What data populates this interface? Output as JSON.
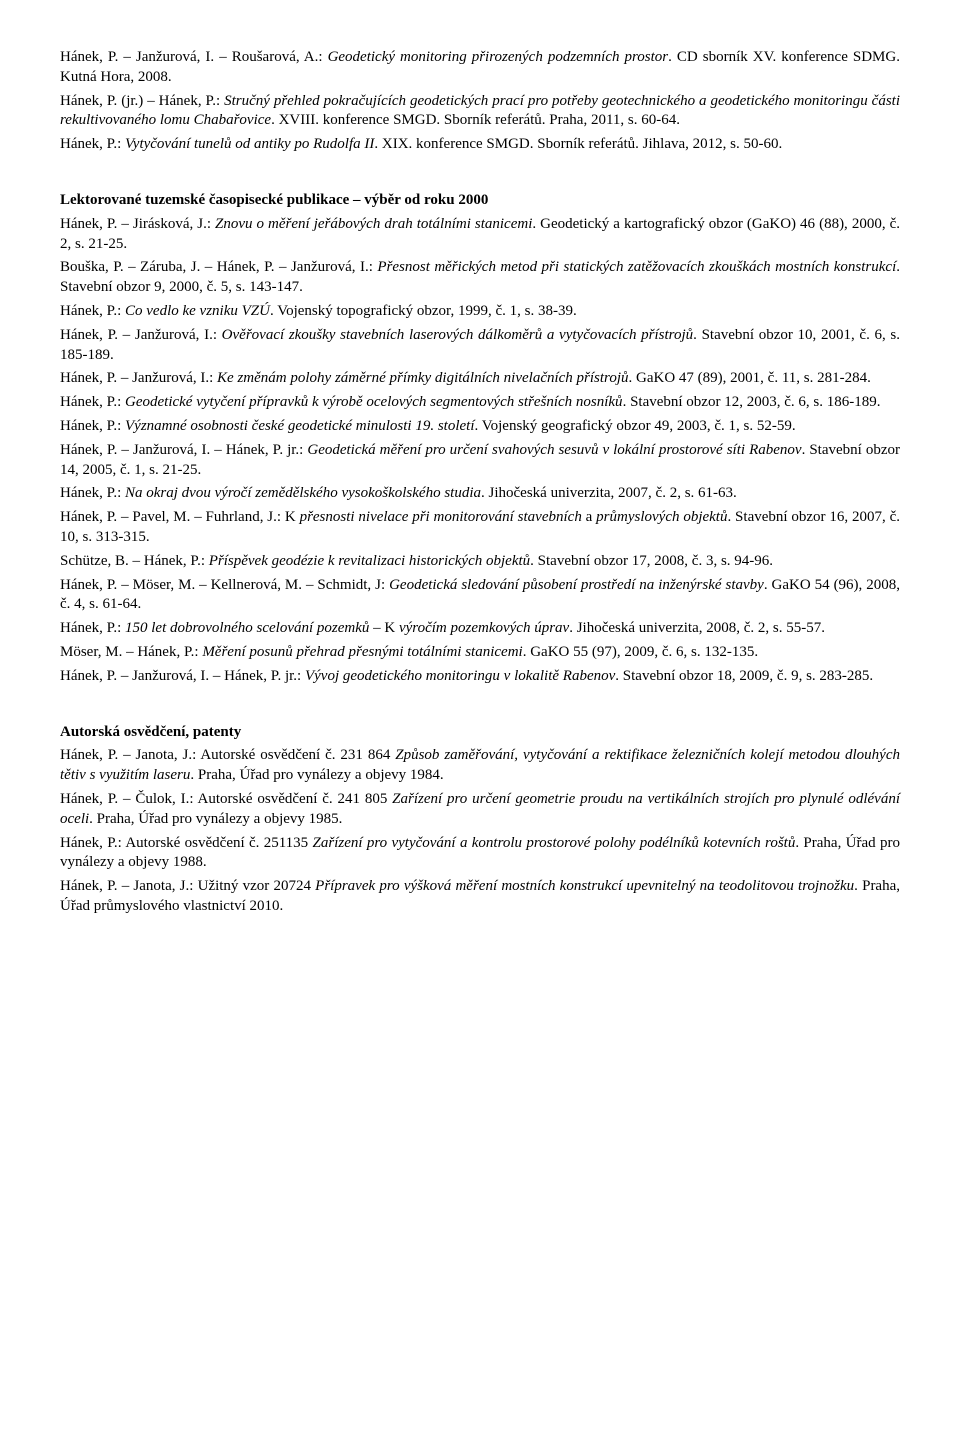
{
  "paragraphs": [
    {
      "html": "Hánek, P. – Janžurová, I. – Roušarová, A.: <span class=\"italic\">Geodetický monitoring přirozených podzemních prostor</span>. CD sborník XV. konference SDMG. Kutná Hora, 2008."
    },
    {
      "html": "Hánek, P. (jr.) – Hánek, P.: <span class=\"italic\">Stručný přehled pokračujících geodetických prací pro potřeby geotechnického a geodetického monitoringu části rekultivovaného lomu Chabařovice</span>. XVIII. konference SMGD. Sborník referátů. Praha, 2011, s. 60-64."
    },
    {
      "html": "Hánek, P.: <span class=\"italic\">Vytyčování tunelů od antiky po Rudolfa II</span>. XIX. konference SMGD. Sborník referátů. Jihlava, 2012, s. 50-60."
    }
  ],
  "heading1": "Lektorované tuzemské časopisecké publikace – výběr od roku 2000",
  "block2": [
    {
      "html": "Hánek, P. – Jirásková, J.: <span class=\"italic\">Znovu o měření jeřábových drah totálními stanicemi</span>. Geodetický a kartografický obzor (GaKO) 46 (88), 2000, č. 2, s. 21-25."
    },
    {
      "html": "Bouška, P. – Záruba, J. – Hánek, P. – Janžurová, I.: <span class=\"italic\">Přesnost měřických metod při statických zatěžovacích zkouškách mostních konstrukcí</span>. Stavební obzor 9, 2000, č. 5, s. 143-147."
    },
    {
      "html": "Hánek, P.: <span class=\"italic\">Co vedlo ke vzniku VZÚ</span>. Vojenský topografický obzor, 1999, č. 1, s. 38-39."
    },
    {
      "html": "Hánek, P. – Janžurová, I.: <span class=\"italic\">Ověřovací zkoušky stavebních laserových dálkoměrů a vytyčovacích přístrojů</span>. Stavební obzor 10, 2001, č. 6, s. 185-189."
    },
    {
      "html": "Hánek, P. – Janžurová, I.: <span class=\"italic\">Ke změnám polohy záměrné přímky digitálních nivelačních přístrojů</span>. GaKO 47 (89), 2001, č. 11, s. 281-284."
    },
    {
      "html": "Hánek, P.: <span class=\"italic\">Geodetické vytyčení přípravků k výrobě ocelových segmentových střešních nosníků</span>. Stavební obzor 12, 2003, č. 6, s. 186-189."
    },
    {
      "html": "Hánek, P.: <span class=\"italic\">Významné osobnosti české geodetické minulosti 19. století</span>. Vojenský geografický obzor 49, 2003, č. 1, s. 52-59."
    },
    {
      "html": "Hánek, P. – Janžurová, I. – Hánek, P. jr.: <span class=\"italic\">Geodetická měření pro určení svahových sesuvů v lokální prostorové síti Rabenov</span>. Stavební obzor 14, 2005, č. 1, s. 21-25."
    },
    {
      "html": "Hánek, P.: <span class=\"italic\">Na okraj dvou výročí zemědělského vysokoškolského studia</span>. Jihočeská univerzita, 2007, č. 2, s. 61-63."
    },
    {
      "html": "Hánek, P. – Pavel, M. – Fuhrland, J.: K <span class=\"italic\">přesnosti nivelace při monitorování stavebních</span> a <span class=\"italic\">průmyslových objektů</span>. Stavební obzor 16, 2007, č. 10, s. 313-315."
    },
    {
      "html": "Schütze, B. – Hánek, P.: <span class=\"italic\">Příspěvek geodézie k revitalizaci historických objektů</span>. Stavební obzor 17, 2008, č. 3, s. 94-96."
    },
    {
      "html": "Hánek, P. – Möser, M. – Kellnerová, M. – Schmidt, J: <span class=\"italic\">Geodetická sledování působení prostředí na inženýrské stavby</span>. GaKO 54 (96), 2008, č. 4, s. 61-64."
    },
    {
      "html": "Hánek, P.: <span class=\"italic\">150 let dobrovolného scelování pozemků</span> – K <span class=\"italic\">výročím pozemkových úprav</span>. Jihočeská univerzita, 2008, č. 2, s. 55-57."
    },
    {
      "html": "Möser, M. – Hánek, P.: <span class=\"italic\">Měření posunů přehrad přesnými totálními stanicemi</span>. GaKO 55 (97), 2009, č. 6, s. 132-135."
    },
    {
      "html": "Hánek, P. – Janžurová, I. – Hánek, P. jr.: <span class=\"italic\">Vývoj geodetického monitoringu v lokalitě Rabenov</span>. Stavební obzor 18, 2009, č. 9, s. 283-285."
    }
  ],
  "heading2": "Autorská osvědčení, patenty",
  "block3": [
    {
      "html": "Hánek, P. – Janota, J.: Autorské osvědčení č. 231 864 <span class=\"italic\">Způsob zaměřování, vytyčování a rektifikace železničních kolejí metodou dlouhých tětiv s využitím laseru</span>. Praha, Úřad pro vynálezy a objevy 1984."
    },
    {
      "html": "Hánek, P. – Čulok, I.: Autorské osvědčení č. 241 805 <span class=\"italic\">Zařízení pro určení geometrie proudu na vertikálních strojích pro plynulé odlévání oceli</span>. Praha, Úřad pro vynálezy a objevy 1985."
    },
    {
      "html": "Hánek, P.: Autorské osvědčení č. 251135 <span class=\"italic\">Zařízení pro vytyčování a kontrolu prostorové polohy podélníků kotevních roštů</span>. Praha, Úřad pro vynálezy a objevy 1988."
    },
    {
      "html": "Hánek, P. – Janota, J.: Užitný vzor 20724 <span class=\"italic\">Přípravek pro výšková měření mostních konstrukcí upevnitelný na teodolitovou trojnožku</span>. Praha, Úřad průmyslového vlastnictví 2010."
    }
  ]
}
